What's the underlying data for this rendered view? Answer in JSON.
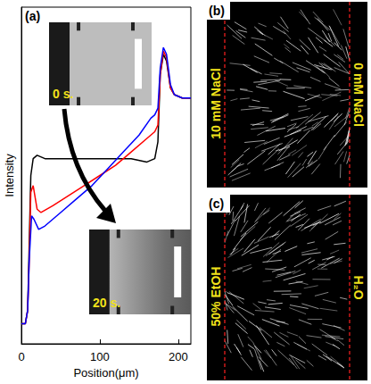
{
  "chart_data": {
    "type": "line",
    "title": "(a)",
    "x_label": "Position(μm)",
    "y_label": "Intensity",
    "xlim": [
      0,
      216
    ],
    "xticks": [
      0,
      100,
      200
    ],
    "ylim": [
      0,
      1
    ],
    "yticks": [],
    "tick_labels": "x",
    "grid": false,
    "annotations": [
      "0 s.",
      "20 s."
    ],
    "series": [
      {
        "color": "#000000",
        "line_style": "solid",
        "x": [
          0,
          5,
          8,
          10,
          12,
          15,
          20,
          30,
          50,
          80,
          110,
          140,
          160,
          170,
          174,
          177,
          181,
          185,
          190,
          195,
          205,
          216
        ],
        "values": [
          0.06,
          0.06,
          0.1,
          0.3,
          0.5,
          0.55,
          0.56,
          0.55,
          0.55,
          0.55,
          0.55,
          0.55,
          0.54,
          0.55,
          0.6,
          0.8,
          0.86,
          0.84,
          0.76,
          0.74,
          0.73,
          0.73
        ]
      },
      {
        "color": "#ff0000",
        "line_style": "solid",
        "x": [
          0,
          5,
          8,
          10,
          12,
          15,
          20,
          25,
          40,
          60,
          80,
          100,
          120,
          140,
          160,
          170,
          174,
          177,
          181,
          185,
          190,
          195,
          205,
          216
        ],
        "values": [
          0.06,
          0.06,
          0.1,
          0.25,
          0.45,
          0.47,
          0.4,
          0.39,
          0.41,
          0.44,
          0.47,
          0.5,
          0.53,
          0.57,
          0.61,
          0.63,
          0.65,
          0.8,
          0.87,
          0.85,
          0.76,
          0.74,
          0.73,
          0.73
        ]
      },
      {
        "color": "#0000ff",
        "line_style": "solid",
        "x": [
          0,
          5,
          8,
          10,
          13,
          16,
          22,
          30,
          50,
          70,
          90,
          110,
          130,
          150,
          165,
          170,
          174,
          177,
          181,
          185,
          190,
          195,
          205,
          216
        ],
        "values": [
          0.06,
          0.06,
          0.1,
          0.25,
          0.38,
          0.37,
          0.34,
          0.35,
          0.39,
          0.43,
          0.47,
          0.52,
          0.57,
          0.62,
          0.67,
          0.68,
          0.7,
          0.82,
          0.88,
          0.86,
          0.77,
          0.74,
          0.73,
          0.73
        ]
      }
    ]
  },
  "images": [
    {
      "label": "(b)",
      "left_text": "10 mM NaCl",
      "right_text": "0 mM NaCl"
    },
    {
      "label": "(c)",
      "left_text": "50% EtOH",
      "right_text": "H₂O"
    }
  ]
}
